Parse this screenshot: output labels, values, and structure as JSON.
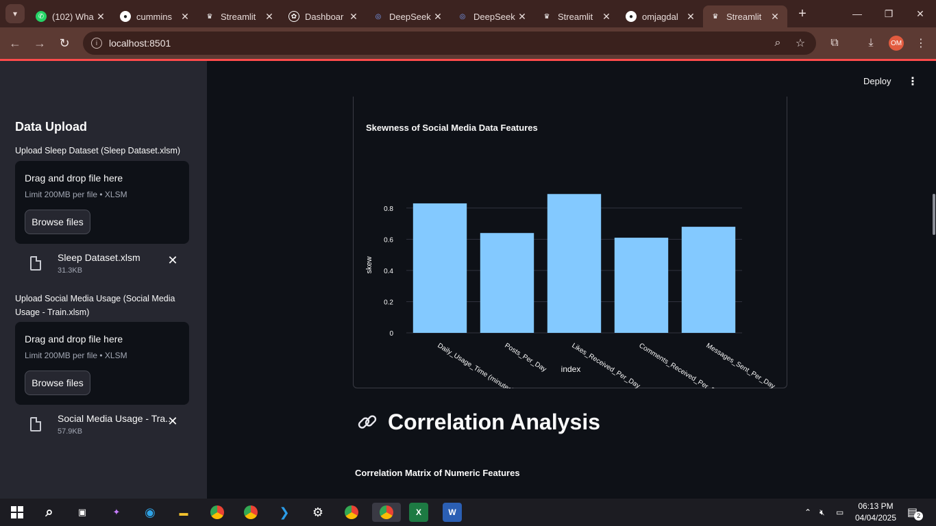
{
  "browser": {
    "tabs": [
      {
        "label": "(102) Wha",
        "icon": "whatsapp-icon"
      },
      {
        "label": "cummins",
        "icon": "github-icon"
      },
      {
        "label": "Streamlit",
        "icon": "streamlit-icon"
      },
      {
        "label": "Dashboar",
        "icon": "openai-icon"
      },
      {
        "label": "DeepSeek",
        "icon": "deepseek-icon"
      },
      {
        "label": "DeepSeek",
        "icon": "deepseek-icon"
      },
      {
        "label": "Streamlit",
        "icon": "streamlit-icon"
      },
      {
        "label": "omjagdal",
        "icon": "github-icon"
      },
      {
        "label": "Streamlit",
        "icon": "streamlit-icon"
      }
    ],
    "url": "localhost:8501",
    "profile_initials": "OM"
  },
  "sidebar": {
    "title": "Data Upload",
    "uploaders": [
      {
        "label": "Upload Sleep Dataset (Sleep Dataset.xlsm)",
        "drop_title": "Drag and drop file here",
        "drop_sub": "Limit 200MB per file • XLSM",
        "browse_label": "Browse files",
        "file_name": "Sleep Dataset.xlsm",
        "file_size": "31.3KB"
      },
      {
        "label": "Upload Social Media Usage (Social Media Usage - Train.xlsm)",
        "drop_title": "Drag and drop file here",
        "drop_sub": "Limit 200MB per file • XLSM",
        "browse_label": "Browse files",
        "file_name": "Social Media Usage - Tra...",
        "file_size": "57.9KB"
      }
    ]
  },
  "header": {
    "deploy_label": "Deploy"
  },
  "main": {
    "chart_title": "Skewness of Social Media Data Features",
    "section_heading": "Correlation Analysis",
    "subheading": "Correlation Matrix of Numeric Features"
  },
  "chart_data": {
    "type": "bar",
    "title": "Skewness of Social Media Data Features",
    "categories": [
      "Daily_Usage_Time (minutes)",
      "Posts_Per_Day",
      "Likes_Received_Per_Day",
      "Comments_Received_Per_Day",
      "Messages_Sent_Per_Day"
    ],
    "values": [
      0.83,
      0.64,
      0.89,
      0.61,
      0.68
    ],
    "xlabel": "index",
    "ylabel": "skew",
    "ylim": [
      0,
      0.9
    ],
    "yticks": [
      0,
      0.2,
      0.4,
      0.6,
      0.8
    ],
    "ytick_labels": [
      "0",
      "0.2",
      "0.4",
      "0.6",
      "0.8"
    ],
    "bar_color": "#83c9ff",
    "grid": true
  },
  "taskbar": {
    "time": "06:13 PM",
    "date": "04/04/2025",
    "notification_count": "2"
  },
  "colors": {
    "accent": "#ff4b4b",
    "sidebar_bg": "#262730",
    "main_bg": "#0e1117",
    "browser_frame": "#5c3a33"
  }
}
